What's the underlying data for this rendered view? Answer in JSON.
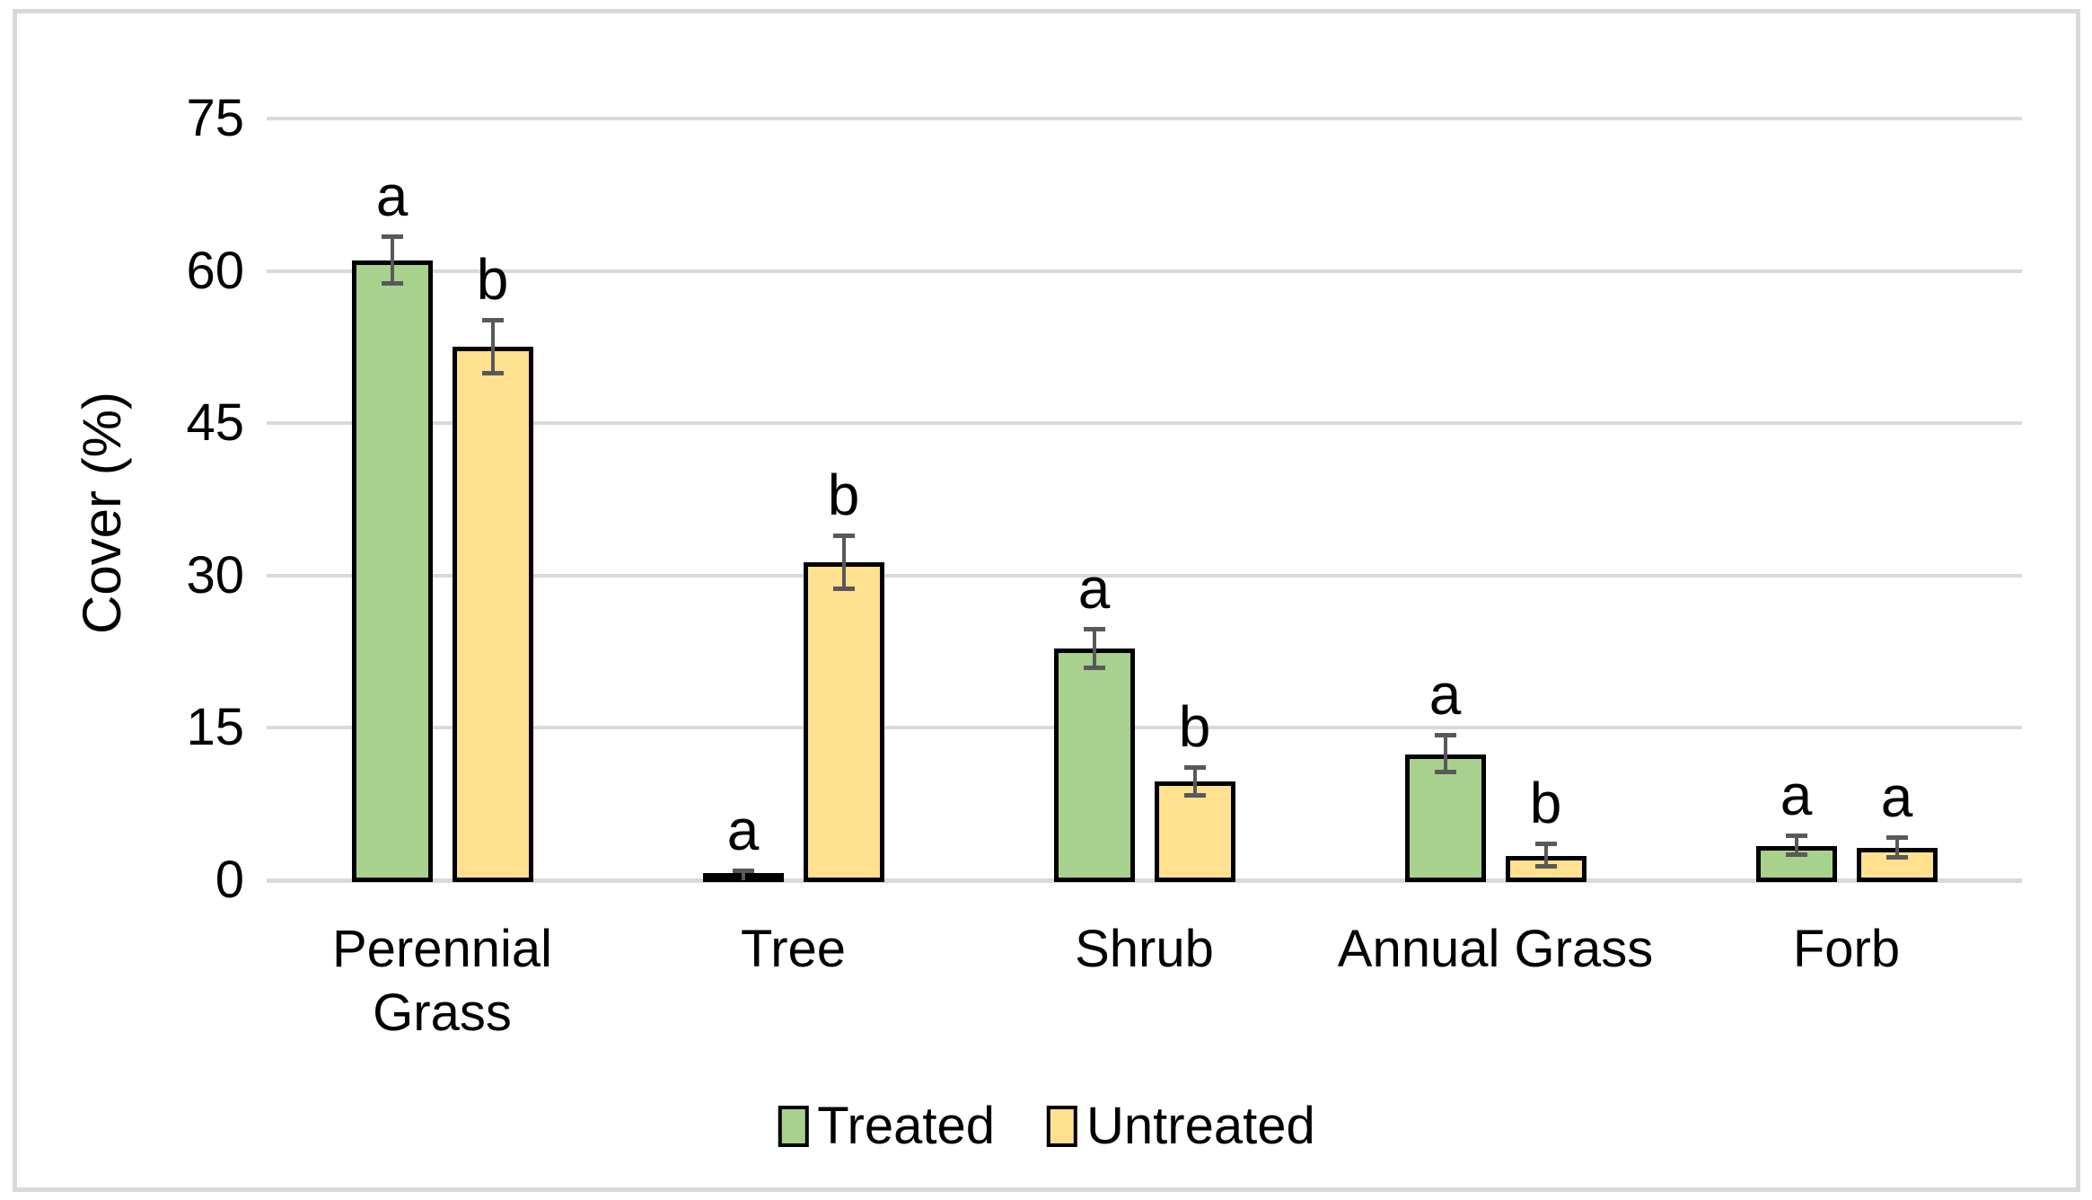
{
  "figure": {
    "background": "#FFFFFF",
    "frame_border_color": "#D9D9D9"
  },
  "chart_data": {
    "type": "bar",
    "title": "",
    "xlabel": "",
    "ylabel": "Cover (%)",
    "ylim": [
      0,
      75
    ],
    "yticks": [
      0,
      15,
      30,
      45,
      60,
      75
    ],
    "grid": true,
    "legend_position": "bottom",
    "categories": [
      "Perennial\nGrass",
      "Tree",
      "Shrub",
      "Annual Grass",
      "Forb"
    ],
    "series": [
      {
        "name": "Treated",
        "color": "#A9D18E",
        "values": [
          61,
          0.4,
          22.8,
          12.4,
          3.4
        ],
        "errors": [
          2.3,
          0.5,
          1.9,
          1.8,
          0.9
        ],
        "letters": [
          "a",
          "a",
          "a",
          "a",
          "a"
        ]
      },
      {
        "name": "Untreated",
        "color": "#FFE18F",
        "values": [
          52.5,
          31.3,
          9.7,
          2.4,
          3.2
        ],
        "errors": [
          2.6,
          2.6,
          1.4,
          1.1,
          1.0
        ],
        "letters": [
          "b",
          "b",
          "b",
          "b",
          "a"
        ]
      }
    ],
    "style": {
      "bar_border_color": "#000000",
      "error_bar_color": "#595959",
      "gridline_color": "#D9D9D9",
      "axis_line_color": "#D9D9D9",
      "text_color": "#000000"
    }
  }
}
